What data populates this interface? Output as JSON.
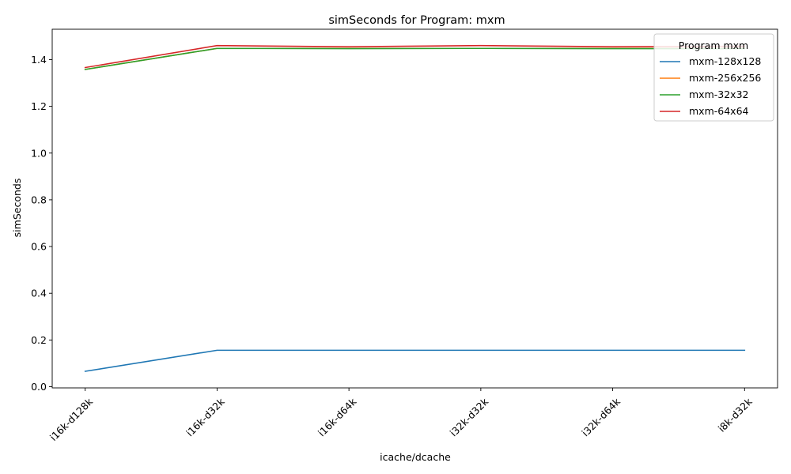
{
  "chart_data": {
    "type": "line",
    "title": "simSeconds for Program: mxm",
    "xlabel": "icache/dcache",
    "ylabel": "simSeconds",
    "categories": [
      "i16k-d128k",
      "i16k-d32k",
      "i16k-d64k",
      "i32k-d32k",
      "i32k-d64k",
      "i8k-d32k"
    ],
    "ylim": [
      -0.005,
      1.53
    ],
    "yticks": [
      0.0,
      0.2,
      0.4,
      0.6,
      0.8,
      1.0,
      1.2,
      1.4
    ],
    "ytick_labels": [
      "0.0",
      "0.2",
      "0.4",
      "0.6",
      "0.8",
      "1.0",
      "1.2",
      "1.4"
    ],
    "grid": false,
    "legend": {
      "title": "Program mxm",
      "placement": "top-right"
    },
    "series": [
      {
        "name": "mxm-128x128",
        "color": "#1f77b4",
        "values": [
          0.066,
          0.156,
          0.156,
          0.156,
          0.156,
          0.156
        ]
      },
      {
        "name": "mxm-256x256",
        "color": "#ff7f0e",
        "values": [
          1.358,
          1.448,
          1.448,
          1.448,
          1.448,
          1.448
        ]
      },
      {
        "name": "mxm-32x32",
        "color": "#2ca02c",
        "values": [
          1.358,
          1.448,
          1.447,
          1.448,
          1.447,
          1.447
        ]
      },
      {
        "name": "mxm-64x64",
        "color": "#d62728",
        "values": [
          1.366,
          1.46,
          1.455,
          1.46,
          1.455,
          1.457
        ]
      }
    ]
  }
}
